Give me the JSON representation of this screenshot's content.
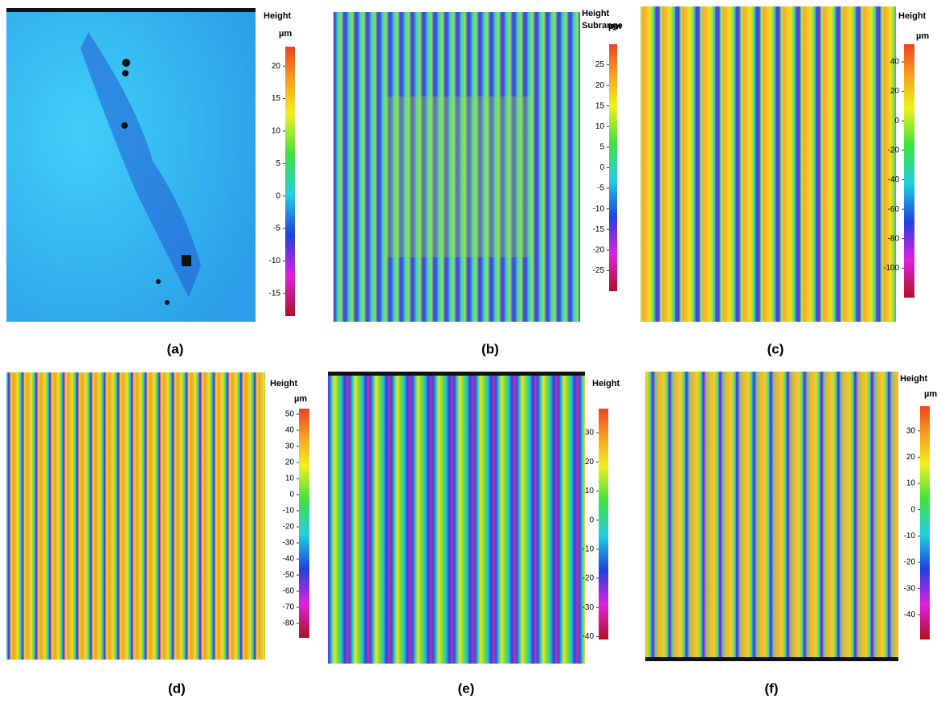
{
  "panels": [
    {
      "label": "(a)",
      "colorbar": {
        "title": "Height",
        "unit": "µm",
        "lim": [
          -18.5,
          23
        ],
        "ticks": [
          20,
          15,
          10,
          5,
          0,
          -5,
          -10,
          -15
        ]
      }
    },
    {
      "label": "(b)",
      "colorbar": {
        "title": "Height",
        "subtitle": "Subrange",
        "unit": "µm",
        "lim": [
          -30,
          30
        ],
        "ticks": [
          25,
          20,
          15,
          10,
          5,
          0,
          -5,
          -10,
          -15,
          -20,
          -25
        ]
      }
    },
    {
      "label": "(c)",
      "colorbar": {
        "title": "Height",
        "unit": "µm",
        "lim": [
          -120,
          52
        ],
        "ticks": [
          40,
          20,
          0,
          -20,
          -40,
          -60,
          -80,
          -100
        ]
      }
    },
    {
      "label": "(d)",
      "colorbar": {
        "title": "Height",
        "unit": "µm",
        "lim": [
          -89,
          53.5
        ],
        "ticks": [
          50,
          40,
          30,
          20,
          10,
          0,
          -10,
          -20,
          -30,
          -40,
          -50,
          -60,
          -70,
          -80
        ]
      }
    },
    {
      "label": "(e)",
      "colorbar": {
        "title": "Height",
        "lim": [
          -41,
          38.3
        ],
        "ticks": [
          30,
          20,
          10,
          0,
          -10,
          -20,
          -30,
          -40
        ]
      }
    },
    {
      "label": "(f)",
      "colorbar": {
        "title": "Height",
        "unit": "µm",
        "lim": [
          -49.4,
          39.4
        ],
        "ticks": [
          30,
          20,
          10,
          0,
          -10,
          -20,
          -30,
          -40
        ]
      }
    }
  ]
}
